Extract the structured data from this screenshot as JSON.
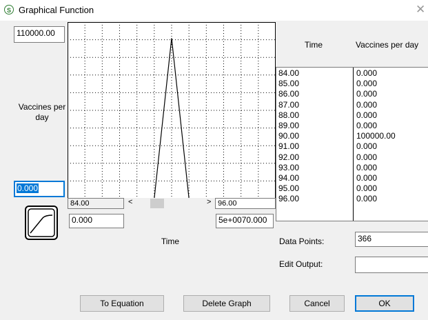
{
  "window": {
    "title": "Graphical Function"
  },
  "graph": {
    "y_max": "110000.00",
    "y_min": "0.000",
    "y_label": "Vaccines per day",
    "x_min": "84.00",
    "x_max": "96.00",
    "x_min_input": "0.000",
    "x_max_input": "5e+0070.000",
    "x_label": "Time"
  },
  "table": {
    "headers": [
      "Time",
      "Vaccines per day"
    ],
    "rows": [
      [
        "84.00",
        "0.000"
      ],
      [
        "85.00",
        "0.000"
      ],
      [
        "86.00",
        "0.000"
      ],
      [
        "87.00",
        "0.000"
      ],
      [
        "88.00",
        "0.000"
      ],
      [
        "89.00",
        "0.000"
      ],
      [
        "90.00",
        "100000.00"
      ],
      [
        "91.00",
        "0.000"
      ],
      [
        "92.00",
        "0.000"
      ],
      [
        "93.00",
        "0.000"
      ],
      [
        "94.00",
        "0.000"
      ],
      [
        "95.00",
        "0.000"
      ],
      [
        "96.00",
        "0.000"
      ]
    ]
  },
  "fields": {
    "data_points_label": "Data Points:",
    "data_points": "366",
    "edit_output_label": "Edit Output:",
    "edit_output": ""
  },
  "buttons": [
    "To Equation",
    "Delete Graph",
    "Cancel",
    "OK"
  ]
}
